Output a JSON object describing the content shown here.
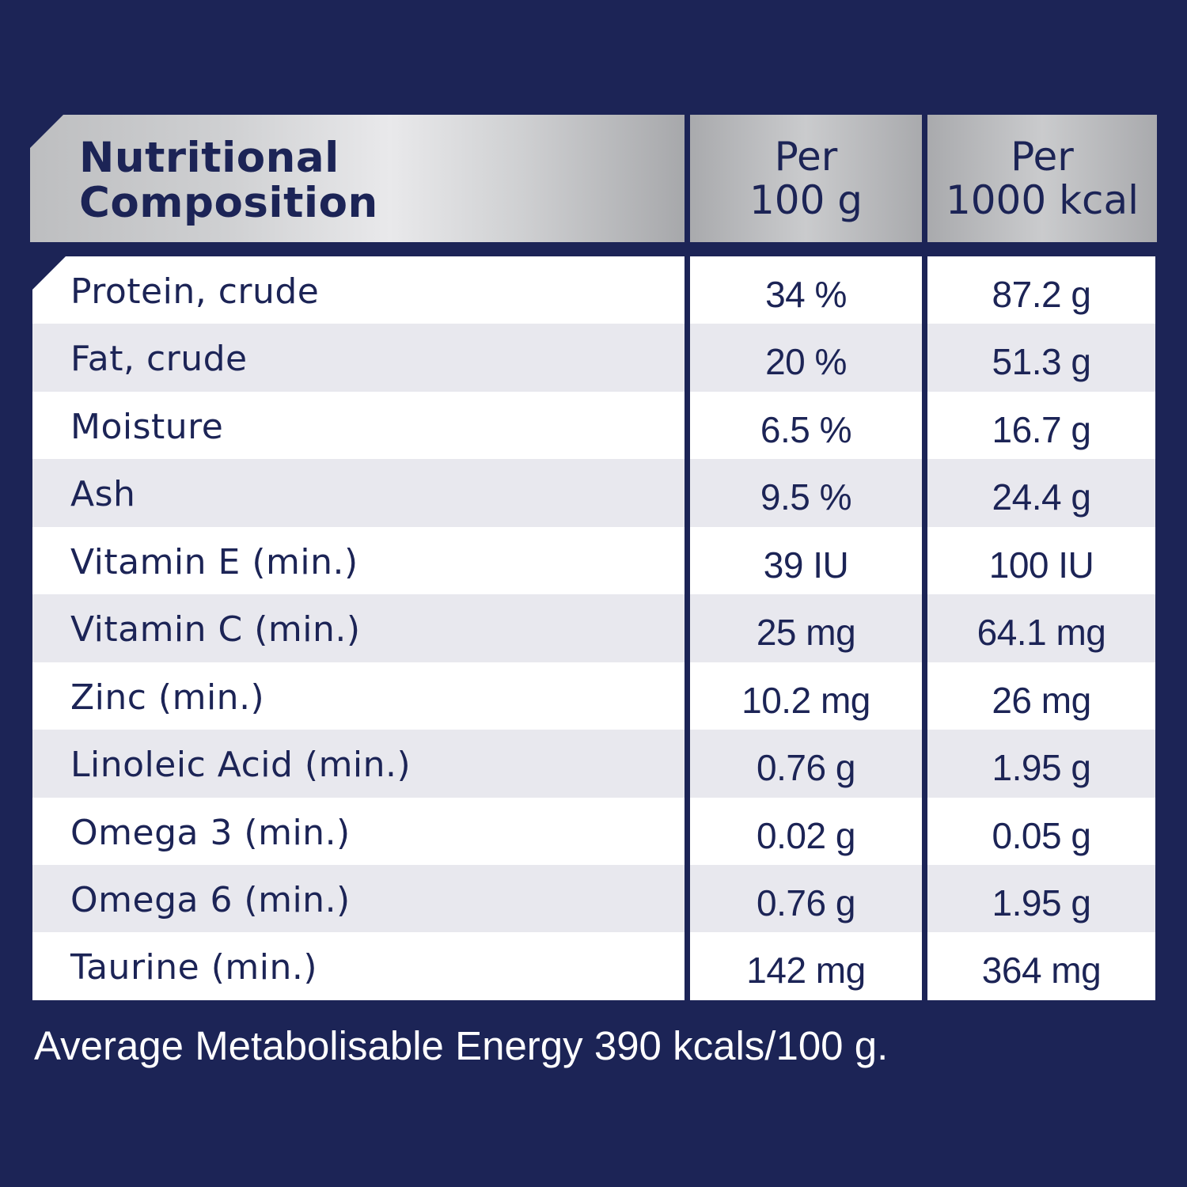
{
  "header": {
    "col1_line1": "Nutritional",
    "col1_line2": "Composition",
    "col2_line1": "Per",
    "col2_line2": "100 g",
    "col3_line1": "Per",
    "col3_line2": "1000 kcal"
  },
  "rows": [
    {
      "name": "Protein, crude",
      "per100g": "34 %",
      "per1000kcal": "87.2 g"
    },
    {
      "name": "Fat, crude",
      "per100g": "20 %",
      "per1000kcal": "51.3 g"
    },
    {
      "name": "Moisture",
      "per100g": "6.5 %",
      "per1000kcal": "16.7 g"
    },
    {
      "name": "Ash",
      "per100g": "9.5 %",
      "per1000kcal": "24.4 g"
    },
    {
      "name": "Vitamin E (min.)",
      "per100g": "39 IU",
      "per1000kcal": "100 IU"
    },
    {
      "name": "Vitamin C (min.)",
      "per100g": "25 mg",
      "per1000kcal": "64.1 mg"
    },
    {
      "name": "Zinc (min.)",
      "per100g": "10.2 mg",
      "per1000kcal": "26 mg"
    },
    {
      "name": "Linoleic Acid (min.)",
      "per100g": "0.76 g",
      "per1000kcal": "1.95 g"
    },
    {
      "name": "Omega 3 (min.)",
      "per100g": "0.02 g",
      "per1000kcal": "0.05 g"
    },
    {
      "name": "Omega 6 (min.)",
      "per100g": "0.76 g",
      "per1000kcal": "1.95 g"
    },
    {
      "name": "Taurine (min.)",
      "per100g": "142 mg",
      "per1000kcal": "364 mg"
    }
  ],
  "footer": {
    "text": "Average Metabolisable Energy 390 kcals/100 g."
  },
  "colors": {
    "background": "#1c2456",
    "text": "#1c2456",
    "row_alt": "#e8e8ee"
  }
}
